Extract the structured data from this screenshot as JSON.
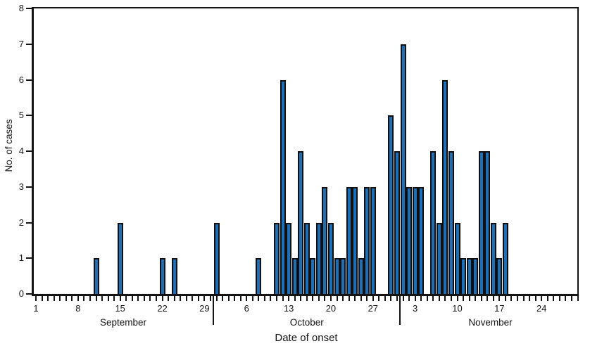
{
  "chart_data": {
    "type": "bar",
    "title": "",
    "xlabel": "Date of onset",
    "ylabel": "No. of cases",
    "ylim": [
      0,
      8
    ],
    "ytick_labels": [
      "0",
      "1",
      "2",
      "3",
      "4",
      "5",
      "6",
      "7",
      "8"
    ],
    "grid": "off",
    "legend": "none",
    "bar_color": "#1d6fb8",
    "bar_edge_color": "#0f0f0f",
    "axis_color": "#141414",
    "months": [
      {
        "name": "September",
        "num_days": 30,
        "labeled_days": [
          1,
          8,
          15,
          22,
          29
        ]
      },
      {
        "name": "October",
        "num_days": 31,
        "labeled_days": [
          6,
          13,
          20,
          27
        ]
      },
      {
        "name": "November",
        "num_days": 30,
        "labeled_days": [
          3,
          10,
          17,
          24
        ]
      }
    ],
    "daily_cases": [
      {
        "month": "September",
        "day": 11,
        "cases": 1
      },
      {
        "month": "September",
        "day": 15,
        "cases": 2
      },
      {
        "month": "September",
        "day": 22,
        "cases": 1
      },
      {
        "month": "September",
        "day": 24,
        "cases": 1
      },
      {
        "month": "October",
        "day": 1,
        "cases": 2
      },
      {
        "month": "October",
        "day": 8,
        "cases": 1
      },
      {
        "month": "October",
        "day": 11,
        "cases": 2
      },
      {
        "month": "October",
        "day": 12,
        "cases": 6
      },
      {
        "month": "October",
        "day": 13,
        "cases": 2
      },
      {
        "month": "October",
        "day": 14,
        "cases": 1
      },
      {
        "month": "October",
        "day": 15,
        "cases": 4
      },
      {
        "month": "October",
        "day": 16,
        "cases": 2
      },
      {
        "month": "October",
        "day": 17,
        "cases": 1
      },
      {
        "month": "October",
        "day": 18,
        "cases": 2
      },
      {
        "month": "October",
        "day": 19,
        "cases": 3
      },
      {
        "month": "October",
        "day": 20,
        "cases": 2
      },
      {
        "month": "October",
        "day": 21,
        "cases": 1
      },
      {
        "month": "October",
        "day": 22,
        "cases": 1
      },
      {
        "month": "October",
        "day": 23,
        "cases": 3
      },
      {
        "month": "October",
        "day": 24,
        "cases": 3
      },
      {
        "month": "October",
        "day": 25,
        "cases": 1
      },
      {
        "month": "October",
        "day": 26,
        "cases": 3
      },
      {
        "month": "October",
        "day": 27,
        "cases": 3
      },
      {
        "month": "October",
        "day": 30,
        "cases": 5
      },
      {
        "month": "October",
        "day": 31,
        "cases": 4
      },
      {
        "month": "November",
        "day": 1,
        "cases": 7
      },
      {
        "month": "November",
        "day": 2,
        "cases": 3
      },
      {
        "month": "November",
        "day": 3,
        "cases": 3
      },
      {
        "month": "November",
        "day": 4,
        "cases": 3
      },
      {
        "month": "November",
        "day": 6,
        "cases": 4
      },
      {
        "month": "November",
        "day": 7,
        "cases": 2
      },
      {
        "month": "November",
        "day": 8,
        "cases": 6
      },
      {
        "month": "November",
        "day": 9,
        "cases": 4
      },
      {
        "month": "November",
        "day": 10,
        "cases": 2
      },
      {
        "month": "November",
        "day": 11,
        "cases": 1
      },
      {
        "month": "November",
        "day": 12,
        "cases": 1
      },
      {
        "month": "November",
        "day": 13,
        "cases": 1
      },
      {
        "month": "November",
        "day": 14,
        "cases": 4
      },
      {
        "month": "November",
        "day": 15,
        "cases": 4
      },
      {
        "month": "November",
        "day": 16,
        "cases": 2
      },
      {
        "month": "November",
        "day": 17,
        "cases": 1
      },
      {
        "month": "November",
        "day": 18,
        "cases": 2
      }
    ]
  }
}
